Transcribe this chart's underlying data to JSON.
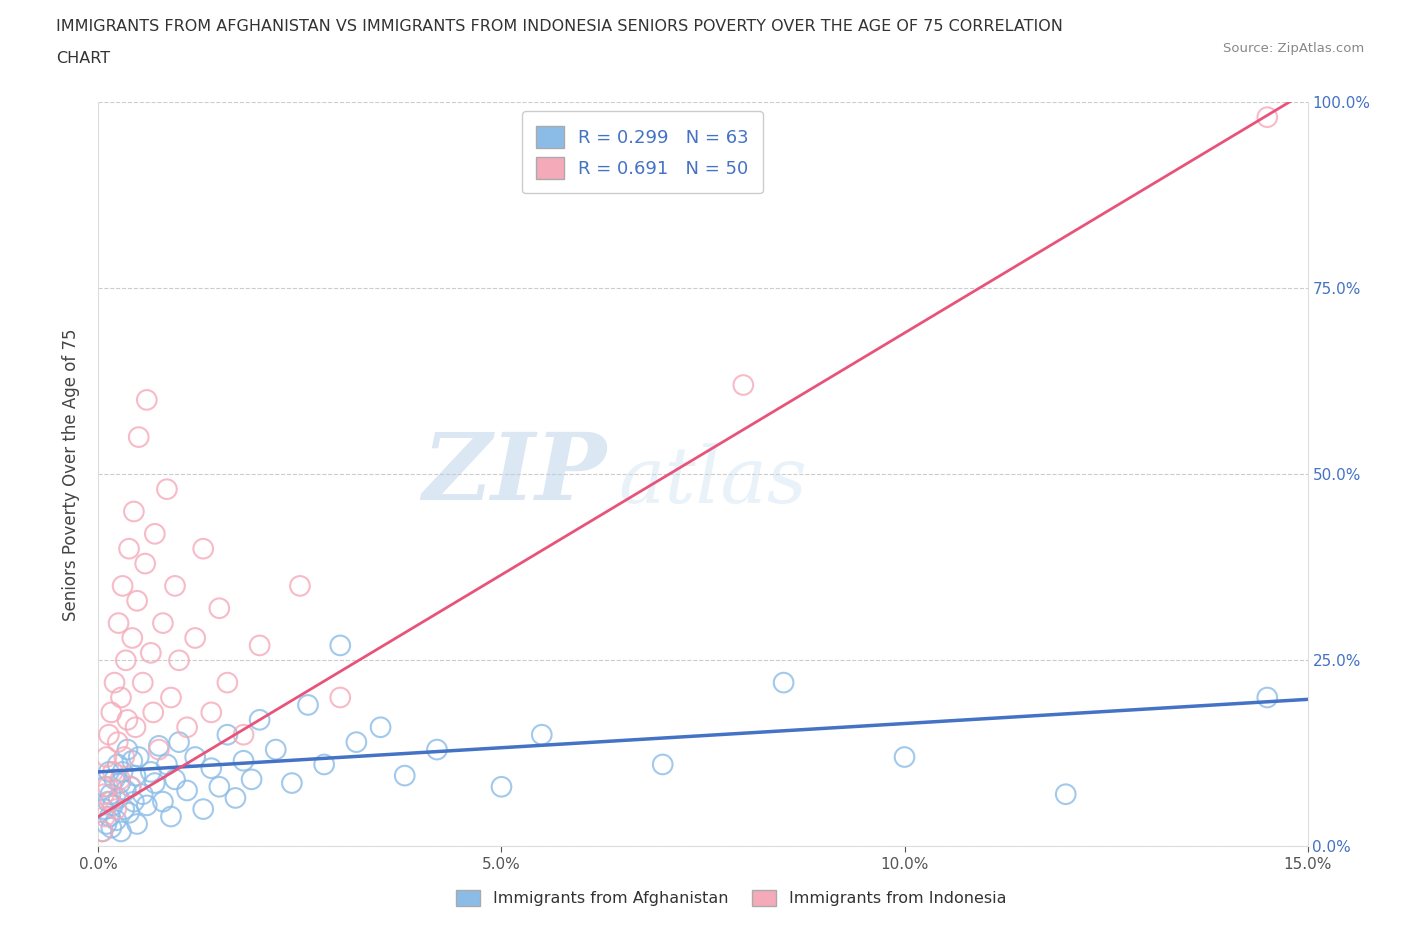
{
  "title_line1": "IMMIGRANTS FROM AFGHANISTAN VS IMMIGRANTS FROM INDONESIA SENIORS POVERTY OVER THE AGE OF 75 CORRELATION",
  "title_line2": "CHART",
  "source": "Source: ZipAtlas.com",
  "ylabel": "Seniors Poverty Over the Age of 75",
  "xlabel_vals": [
    0.0,
    5.0,
    10.0,
    15.0
  ],
  "ylabel_vals": [
    0.0,
    25.0,
    50.0,
    75.0,
    100.0
  ],
  "xlim": [
    0,
    15
  ],
  "ylim": [
    0,
    100
  ],
  "afghanistan_color": "#8BBCE8",
  "indonesia_color": "#F5AABA",
  "afghanistan_line_color": "#4472C4",
  "indonesia_line_color": "#E8537A",
  "R_afghanistan": 0.299,
  "N_afghanistan": 63,
  "R_indonesia": 0.691,
  "N_indonesia": 50,
  "legend_label_afghanistan": "Immigrants from Afghanistan",
  "legend_label_indonesia": "Immigrants from Indonesia",
  "watermark_zip": "ZIP",
  "watermark_atlas": "atlas",
  "afghanistan_points": [
    [
      0.05,
      2.0
    ],
    [
      0.07,
      5.0
    ],
    [
      0.08,
      8.0
    ],
    [
      0.1,
      3.0
    ],
    [
      0.12,
      6.0
    ],
    [
      0.13,
      10.0
    ],
    [
      0.14,
      4.0
    ],
    [
      0.15,
      7.0
    ],
    [
      0.16,
      2.5
    ],
    [
      0.18,
      5.5
    ],
    [
      0.2,
      9.0
    ],
    [
      0.22,
      3.5
    ],
    [
      0.24,
      11.0
    ],
    [
      0.25,
      6.5
    ],
    [
      0.27,
      8.5
    ],
    [
      0.28,
      2.0
    ],
    [
      0.3,
      10.0
    ],
    [
      0.32,
      5.0
    ],
    [
      0.34,
      7.5
    ],
    [
      0.36,
      13.0
    ],
    [
      0.38,
      4.5
    ],
    [
      0.4,
      8.0
    ],
    [
      0.42,
      11.5
    ],
    [
      0.44,
      6.0
    ],
    [
      0.46,
      9.5
    ],
    [
      0.48,
      3.0
    ],
    [
      0.5,
      12.0
    ],
    [
      0.55,
      7.0
    ],
    [
      0.6,
      5.5
    ],
    [
      0.65,
      10.0
    ],
    [
      0.7,
      8.5
    ],
    [
      0.75,
      13.5
    ],
    [
      0.8,
      6.0
    ],
    [
      0.85,
      11.0
    ],
    [
      0.9,
      4.0
    ],
    [
      0.95,
      9.0
    ],
    [
      1.0,
      14.0
    ],
    [
      1.1,
      7.5
    ],
    [
      1.2,
      12.0
    ],
    [
      1.3,
      5.0
    ],
    [
      1.4,
      10.5
    ],
    [
      1.5,
      8.0
    ],
    [
      1.6,
      15.0
    ],
    [
      1.7,
      6.5
    ],
    [
      1.8,
      11.5
    ],
    [
      1.9,
      9.0
    ],
    [
      2.0,
      17.0
    ],
    [
      2.2,
      13.0
    ],
    [
      2.4,
      8.5
    ],
    [
      2.6,
      19.0
    ],
    [
      2.8,
      11.0
    ],
    [
      3.0,
      27.0
    ],
    [
      3.2,
      14.0
    ],
    [
      3.5,
      16.0
    ],
    [
      3.8,
      9.5
    ],
    [
      4.2,
      13.0
    ],
    [
      5.0,
      8.0
    ],
    [
      5.5,
      15.0
    ],
    [
      7.0,
      11.0
    ],
    [
      8.5,
      22.0
    ],
    [
      10.0,
      12.0
    ],
    [
      12.0,
      7.0
    ],
    [
      14.5,
      20.0
    ]
  ],
  "indonesia_points": [
    [
      0.05,
      2.0
    ],
    [
      0.07,
      7.0
    ],
    [
      0.08,
      4.0
    ],
    [
      0.1,
      12.0
    ],
    [
      0.12,
      8.0
    ],
    [
      0.13,
      15.0
    ],
    [
      0.15,
      6.0
    ],
    [
      0.16,
      18.0
    ],
    [
      0.18,
      10.0
    ],
    [
      0.2,
      22.0
    ],
    [
      0.22,
      5.0
    ],
    [
      0.24,
      14.0
    ],
    [
      0.25,
      30.0
    ],
    [
      0.27,
      9.0
    ],
    [
      0.28,
      20.0
    ],
    [
      0.3,
      35.0
    ],
    [
      0.32,
      12.0
    ],
    [
      0.34,
      25.0
    ],
    [
      0.36,
      17.0
    ],
    [
      0.38,
      40.0
    ],
    [
      0.4,
      8.0
    ],
    [
      0.42,
      28.0
    ],
    [
      0.44,
      45.0
    ],
    [
      0.46,
      16.0
    ],
    [
      0.48,
      33.0
    ],
    [
      0.5,
      55.0
    ],
    [
      0.55,
      22.0
    ],
    [
      0.58,
      38.0
    ],
    [
      0.6,
      60.0
    ],
    [
      0.65,
      26.0
    ],
    [
      0.68,
      18.0
    ],
    [
      0.7,
      42.0
    ],
    [
      0.75,
      13.0
    ],
    [
      0.8,
      30.0
    ],
    [
      0.85,
      48.0
    ],
    [
      0.9,
      20.0
    ],
    [
      0.95,
      35.0
    ],
    [
      1.0,
      25.0
    ],
    [
      1.1,
      16.0
    ],
    [
      1.2,
      28.0
    ],
    [
      1.3,
      40.0
    ],
    [
      1.4,
      18.0
    ],
    [
      1.5,
      32.0
    ],
    [
      1.6,
      22.0
    ],
    [
      1.8,
      15.0
    ],
    [
      2.0,
      27.0
    ],
    [
      2.5,
      35.0
    ],
    [
      3.0,
      20.0
    ],
    [
      8.0,
      62.0
    ],
    [
      14.5,
      98.0
    ]
  ]
}
